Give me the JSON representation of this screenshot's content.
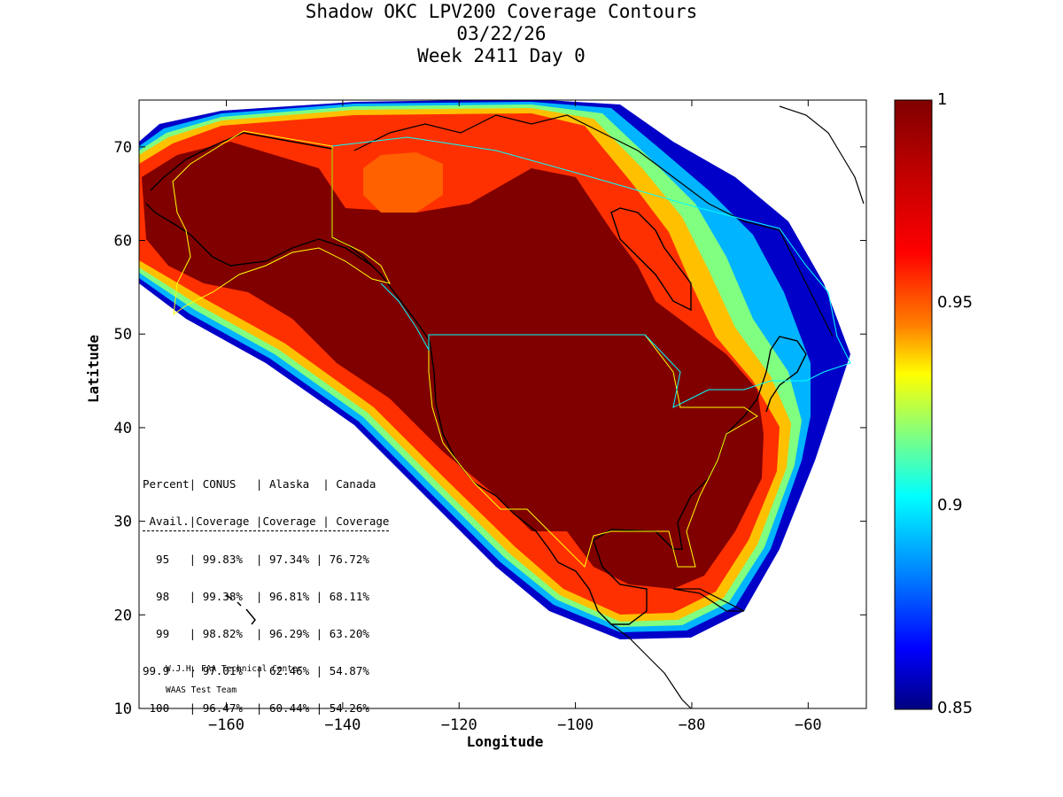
{
  "title": {
    "line1": "Shadow OKC LPV200 Coverage Contours",
    "line2": "03/22/26",
    "line3": "Week 2411 Day 0"
  },
  "axes": {
    "xlabel": "Longitude",
    "ylabel": "Latitude",
    "xlim": [
      -175,
      -50
    ],
    "ylim": [
      10,
      75
    ],
    "xticks": [
      -160,
      -140,
      -120,
      -100,
      -80,
      -60
    ],
    "yticks": [
      10,
      20,
      30,
      40,
      50,
      60,
      70
    ]
  },
  "colorbar": {
    "min": 0.85,
    "max": 1,
    "labels": [
      "1",
      "0.95",
      "0.9",
      "0.85"
    ],
    "colors": [
      "#800000",
      "#ff0000",
      "#ff8000",
      "#ffff00",
      "#80ff80",
      "#00ffff",
      "#0080ff",
      "#0000ff",
      "#000080"
    ]
  },
  "stats_table": {
    "header1": "Percent| CONUS   | Alaska  | Canada",
    "header2": " Avail.|Coverage |Coverage | Coverage",
    "rows": [
      "  95   | 99.83%  | 97.34% | 76.72%",
      "  98   | 99.38%  | 96.81% | 68.11%",
      "  99   | 98.82%  | 96.29% | 63.20%",
      "99.9   | 97.01%  | 62.46% | 54.87%",
      " 100   | 96.47%  | 60.44% | 54.26%"
    ]
  },
  "credit": {
    "line1": "W.J.H. FAA Technical Center",
    "line2": "WAAS Test Team"
  }
}
